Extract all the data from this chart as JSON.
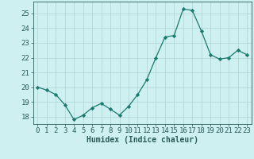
{
  "x": [
    0,
    1,
    2,
    3,
    4,
    5,
    6,
    7,
    8,
    9,
    10,
    11,
    12,
    13,
    14,
    15,
    16,
    17,
    18,
    19,
    20,
    21,
    22,
    23
  ],
  "y": [
    20.0,
    19.8,
    19.5,
    18.8,
    17.8,
    18.1,
    18.6,
    18.9,
    18.5,
    18.1,
    18.7,
    19.5,
    20.5,
    22.0,
    23.4,
    23.5,
    25.3,
    25.2,
    23.8,
    22.2,
    21.9,
    22.0,
    22.5,
    22.2
  ],
  "line_color": "#1a7a6e",
  "marker": "D",
  "marker_size": 2.2,
  "bg_color": "#cff0f0",
  "grid_color": "#aed4d4",
  "axis_color": "#2a5a5a",
  "xlabel": "Humidex (Indice chaleur)",
  "ylim": [
    17.5,
    25.8
  ],
  "xlim": [
    -0.5,
    23.5
  ],
  "yticks": [
    18,
    19,
    20,
    21,
    22,
    23,
    24,
    25
  ],
  "xticks": [
    0,
    1,
    2,
    3,
    4,
    5,
    6,
    7,
    8,
    9,
    10,
    11,
    12,
    13,
    14,
    15,
    16,
    17,
    18,
    19,
    20,
    21,
    22,
    23
  ],
  "label_fontsize": 7,
  "tick_fontsize": 6.5
}
